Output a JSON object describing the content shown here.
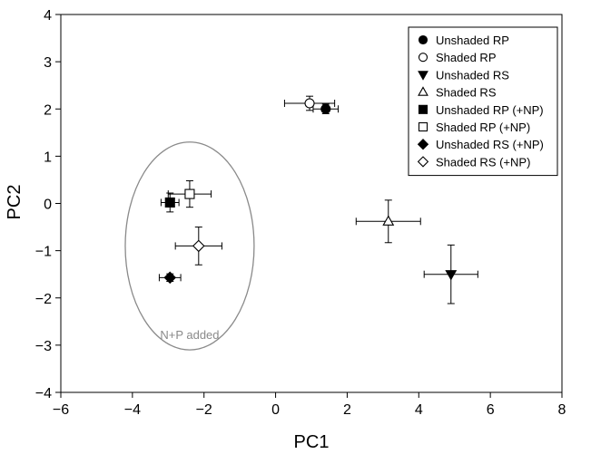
{
  "chart_data": {
    "type": "scatter",
    "xlabel": "PC1",
    "ylabel": "PC2",
    "xlim": [
      -6,
      8
    ],
    "ylim": [
      -4,
      4
    ],
    "xticks": [
      -6,
      -4,
      -2,
      0,
      2,
      4,
      6,
      8
    ],
    "yticks": [
      -4,
      -3,
      -2,
      -1,
      0,
      1,
      2,
      3,
      4
    ],
    "xtick_labels": [
      "−6",
      "−4",
      "−2",
      "0",
      "2",
      "4",
      "6",
      "8"
    ],
    "ytick_labels": [
      "−4",
      "−3",
      "−2",
      "−1",
      "0",
      "1",
      "2",
      "3",
      "4"
    ],
    "grid": false,
    "legend_position": "top-right",
    "series": [
      {
        "name": "Unshaded RP",
        "marker": "circle",
        "fill": "#000000",
        "x": 1.4,
        "y": 2.0,
        "x_err": 0.35,
        "y_err": 0.1
      },
      {
        "name": "Shaded RP",
        "marker": "circle",
        "fill": "#ffffff",
        "x": 0.95,
        "y": 2.12,
        "x_err": 0.7,
        "y_err": 0.15
      },
      {
        "name": "Unshaded RS",
        "marker": "triangle-down",
        "fill": "#000000",
        "x": 4.9,
        "y": -1.5,
        "x_err": 0.75,
        "y_err": 0.62
      },
      {
        "name": "Shaded RS",
        "marker": "triangle-up",
        "fill": "#ffffff",
        "x": 3.15,
        "y": -0.38,
        "x_err": 0.9,
        "y_err": 0.45
      },
      {
        "name": "Unshaded RP (+NP)",
        "marker": "square",
        "fill": "#000000",
        "x": -2.95,
        "y": 0.02,
        "x_err": 0.25,
        "y_err": 0.2
      },
      {
        "name": "Shaded RP (+NP)",
        "marker": "square",
        "fill": "#ffffff",
        "x": -2.4,
        "y": 0.2,
        "x_err": 0.6,
        "y_err": 0.28
      },
      {
        "name": "Unshaded RS (+NP)",
        "marker": "diamond",
        "fill": "#000000",
        "x": -2.95,
        "y": -1.57,
        "x_err": 0.3,
        "y_err": 0.08
      },
      {
        "name": "Shaded RS (+NP)",
        "marker": "diamond",
        "fill": "#ffffff",
        "x": -2.15,
        "y": -0.9,
        "x_err": 0.65,
        "y_err": 0.4
      }
    ],
    "annotations": [
      {
        "text": "N+P added",
        "shape": "ellipse",
        "cx": -2.4,
        "cy": -0.9,
        "rx": 1.8,
        "ry": 2.2,
        "color": "#8a8a8a"
      }
    ]
  }
}
